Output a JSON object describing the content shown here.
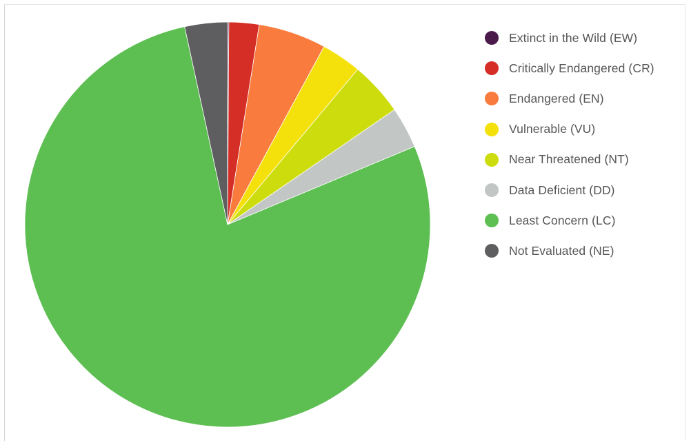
{
  "chart_data": {
    "type": "pie",
    "categories": [
      "Extinct in the Wild (EW)",
      "Critically Endangered (CR)",
      "Endangered (EN)",
      "Vulnerable (VU)",
      "Near Threatened (NT)",
      "Data Deficient (DD)",
      "Least Concern (LC)",
      "Not Evaluated (NE)"
    ],
    "values": [
      0.1,
      2.4,
      5.4,
      3.2,
      4.3,
      3.3,
      77.9,
      3.4
    ],
    "colors": [
      "#4a1a4a",
      "#d42e26",
      "#f97c3e",
      "#f4e10c",
      "#cddc0c",
      "#c2c6c4",
      "#5dbe52",
      "#5e5e60"
    ],
    "legend_position": "right",
    "start_angle": "12 o'clock, clockwise"
  }
}
